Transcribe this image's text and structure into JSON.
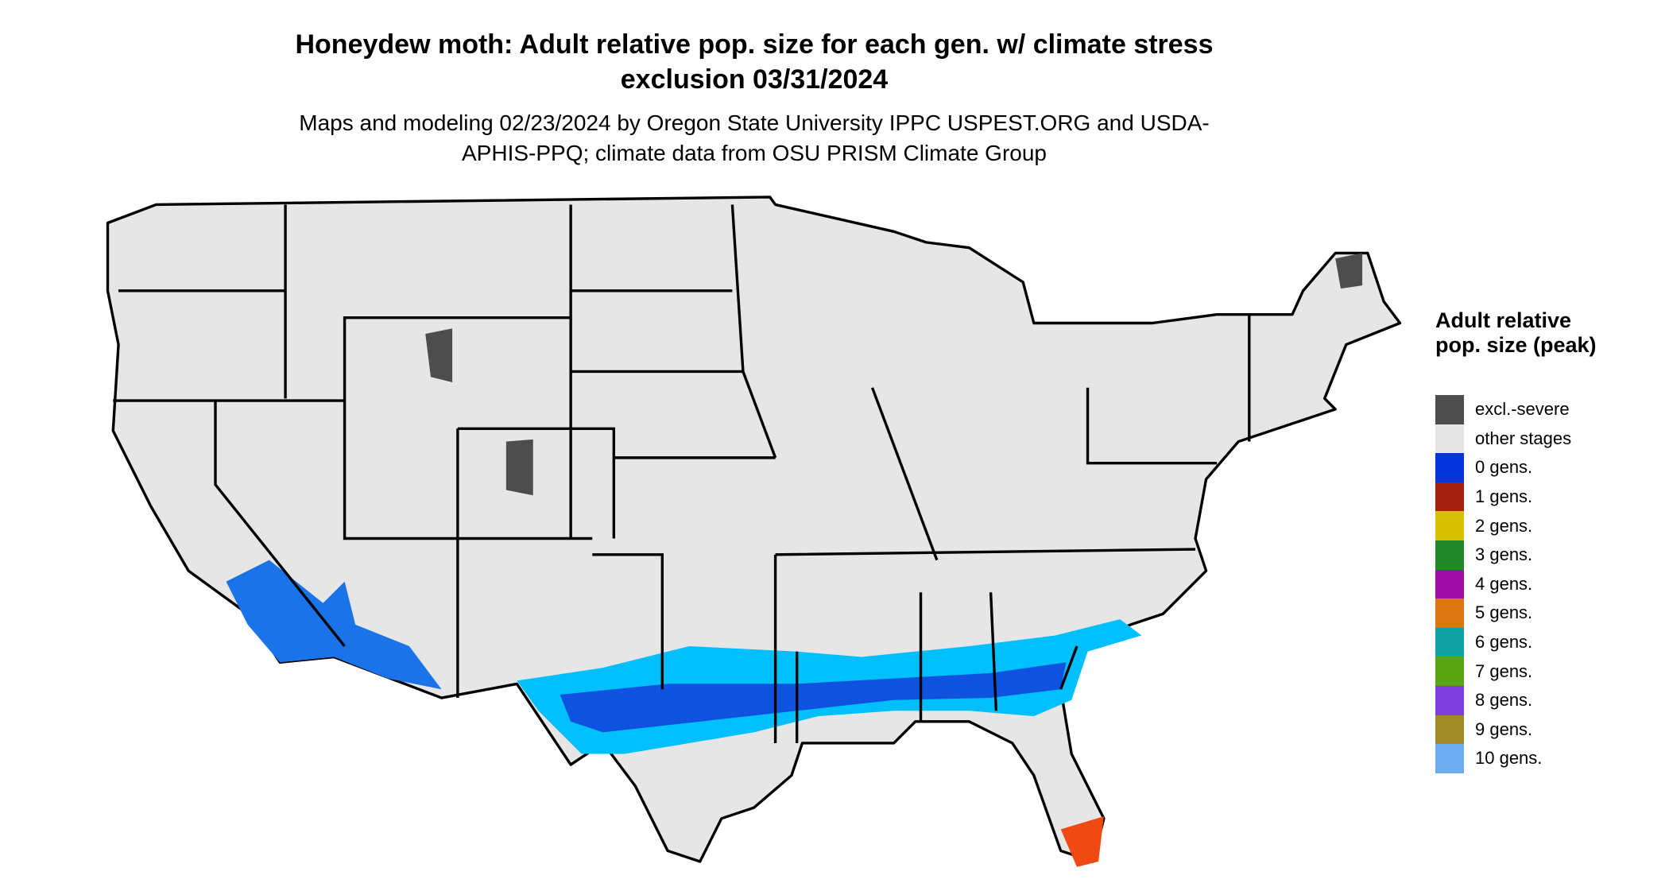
{
  "title": "Honeydew moth: Adult relative pop. size for each gen. w/ climate stress exclusion 03/31/2024",
  "subtitle": "Maps and modeling 02/23/2024 by Oregon State University IPPC USPEST.ORG and USDA-APHIS-PPQ; climate data from OSU PRISM Climate Group",
  "legend": {
    "title": "Adult relative pop. size (peak)",
    "items": [
      {
        "label": "excl.-severe",
        "color": "#4d4d4d"
      },
      {
        "label": "other stages",
        "color": "#e6e6e6"
      },
      {
        "label": "0 gens.",
        "color": "#0433d9"
      },
      {
        "label": "1 gens.",
        "color": "#a5210d"
      },
      {
        "label": "2 gens.",
        "color": "#d8c000"
      },
      {
        "label": "3 gens.",
        "color": "#22862a"
      },
      {
        "label": "4 gens.",
        "color": "#a00ca6"
      },
      {
        "label": "5 gens.",
        "color": "#de7513"
      },
      {
        "label": "6 gens.",
        "color": "#11a3a3"
      },
      {
        "label": "7 gens.",
        "color": "#5ba411"
      },
      {
        "label": "8 gens.",
        "color": "#7f3ee0"
      },
      {
        "label": "9 gens.",
        "color": "#a08a26"
      },
      {
        "label": "10 gens.",
        "color": "#6cacf2"
      }
    ]
  }
}
